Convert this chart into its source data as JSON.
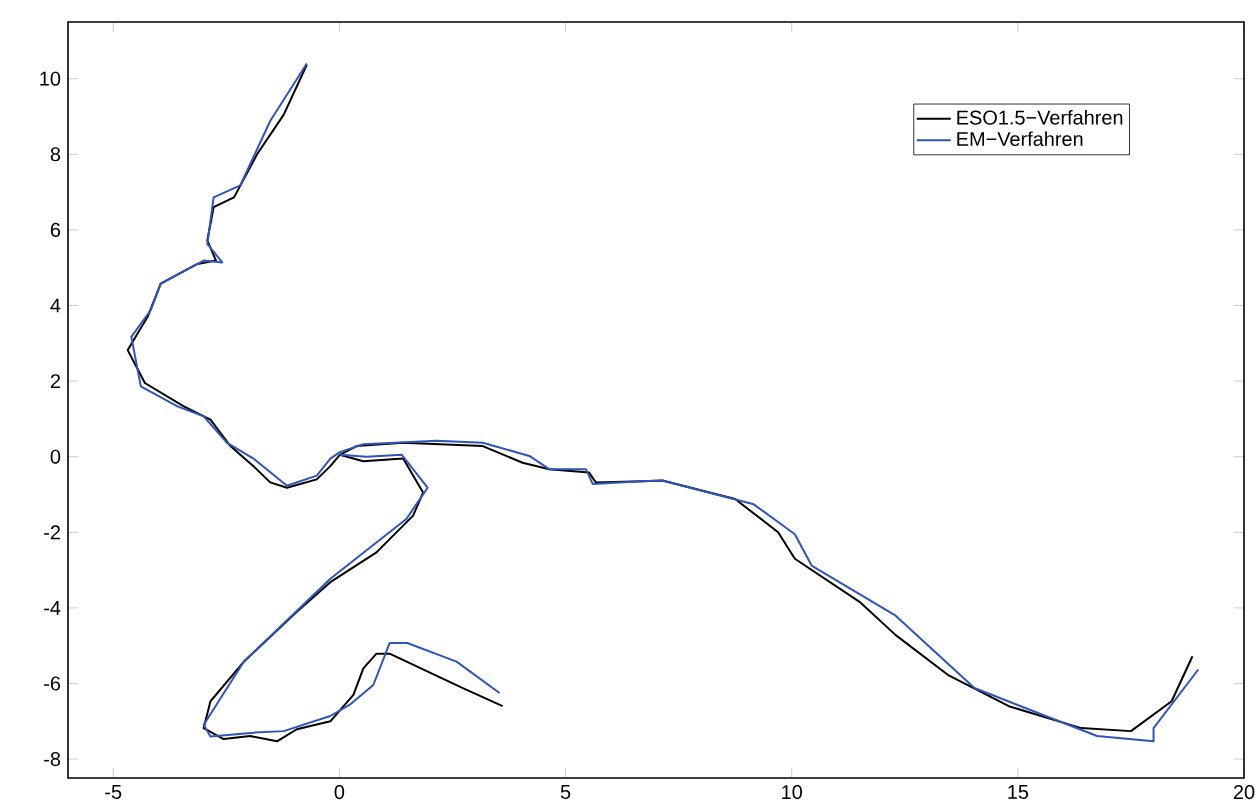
{
  "chart_data": {
    "type": "line",
    "xlim": [
      -6,
      20
    ],
    "ylim": [
      -8.5,
      11.5
    ],
    "xticks": [
      -5,
      0,
      5,
      10,
      15,
      20
    ],
    "yticks": [
      -8,
      -6,
      -4,
      -2,
      0,
      2,
      4,
      6,
      8,
      10
    ],
    "legend": "top right",
    "series": [
      {
        "name": "ESO1.5−Verfahren",
        "color": "#000000",
        "x": [
          18.86,
          18.4,
          17.5,
          16.4,
          14.8,
          13.45,
          12.3,
          11.5,
          10.07,
          9.7,
          8.75,
          7.14,
          6.7,
          5.67,
          5.52,
          4.64,
          4.05,
          3.17,
          1.41,
          0.38,
          0.01,
          -0.2,
          -0.5,
          -1.16,
          -1.53,
          -1.9,
          -2.41,
          -2.85,
          -3.44,
          -4.3,
          -4.68,
          -4.24,
          -3.95,
          -3.14,
          -2.73,
          -2.92,
          -2.78,
          -2.33,
          -1.82,
          -1.23,
          -0.72,
          null,
          0.01,
          0.53,
          1.41,
          1.85,
          1.63,
          0.82,
          -0.2,
          -0.94,
          -2.11,
          -2.85,
          -3.0,
          -2.56,
          -1.97,
          -1.38,
          -0.94,
          -0.2,
          0.31,
          0.53,
          0.82,
          1.11,
          2.73,
          3.61
        ],
        "values": [
          -5.28,
          -6.47,
          -7.26,
          -7.18,
          -6.6,
          -5.77,
          -4.72,
          -3.84,
          -2.7,
          -2.0,
          -1.12,
          -0.63,
          -0.65,
          -0.68,
          -0.42,
          -0.33,
          -0.16,
          0.28,
          0.37,
          0.28,
          0.05,
          -0.25,
          -0.6,
          -0.82,
          -0.68,
          -0.25,
          0.28,
          0.98,
          1.33,
          1.95,
          2.82,
          3.7,
          4.58,
          5.1,
          5.19,
          5.72,
          6.6,
          6.86,
          8.0,
          9.05,
          10.37,
          null,
          0.05,
          -0.12,
          -0.05,
          -0.95,
          -1.56,
          -2.53,
          -3.32,
          -4.1,
          -5.42,
          -6.47,
          -7.18,
          -7.47,
          -7.39,
          -7.53,
          -7.21,
          -7.0,
          -6.3,
          -5.6,
          -5.21,
          -5.21,
          -6.12,
          -6.6
        ]
      },
      {
        "name": "EM−Verfahren",
        "color": "#2f55b8",
        "x": [
          18.99,
          18.0,
          18.0,
          16.75,
          14.04,
          12.28,
          10.44,
          10.07,
          9.16,
          7.14,
          6.7,
          5.6,
          5.45,
          4.64,
          4.2,
          3.17,
          2.15,
          0.53,
          0.01,
          -0.2,
          -0.5,
          -1.16,
          -1.9,
          -2.49,
          -3.0,
          -3.58,
          -4.39,
          -4.6,
          -4.17,
          -3.95,
          -3.0,
          -2.59,
          -2.92,
          -2.78,
          -2.19,
          -1.53,
          -0.72,
          null,
          0.01,
          0.6,
          1.38,
          1.95,
          1.48,
          -0.2,
          -2.11,
          -3.0,
          -2.85,
          -1.9,
          -1.23,
          -0.2,
          0.23,
          0.75,
          1.11,
          1.5,
          2.59,
          3.54
        ],
        "values": [
          -5.63,
          -7.18,
          -7.53,
          -7.39,
          -6.12,
          -4.19,
          -2.88,
          -2.05,
          -1.26,
          -0.63,
          -0.65,
          -0.72,
          -0.33,
          -0.33,
          0.02,
          0.37,
          0.42,
          0.33,
          0.12,
          -0.05,
          -0.5,
          -0.77,
          -0.05,
          0.37,
          1.07,
          1.33,
          1.86,
          3.17,
          3.88,
          4.58,
          5.19,
          5.14,
          5.63,
          6.86,
          7.18,
          8.88,
          10.4,
          null,
          0.05,
          0.0,
          0.05,
          -0.82,
          -1.65,
          -3.23,
          -5.42,
          -7.09,
          -7.4,
          -7.3,
          -7.26,
          -6.86,
          -6.56,
          -6.04,
          -4.93,
          -4.93,
          -5.42,
          -6.25
        ]
      }
    ]
  }
}
